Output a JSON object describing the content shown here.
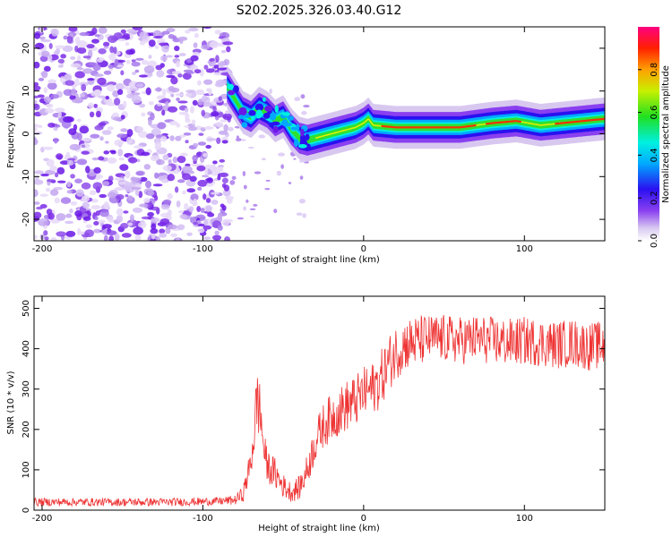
{
  "figure": {
    "title": "S202.2025.326.03.40.G12"
  },
  "chart_data": [
    {
      "type": "heatmap",
      "panel": "top",
      "xlabel": "Height of straight line (km)",
      "ylabel": "Frequency (Hz)",
      "xlim": [
        -205,
        150
      ],
      "ylim": [
        -25,
        25
      ],
      "xticks": [
        -200,
        -100,
        0,
        100
      ],
      "yticks": [
        -20,
        -10,
        0,
        10,
        20
      ],
      "colorbar": {
        "label": "Normalized spectral amplitude",
        "range": [
          0,
          1
        ],
        "ticks": [
          0.0,
          0.2,
          0.4,
          0.6,
          0.8
        ],
        "tick_labels": [
          "0.0",
          "0.2",
          "0.4",
          "0.6",
          "0.8"
        ]
      },
      "ridge": {
        "name": "dominant frequency ridge",
        "points": [
          {
            "x": -85,
            "y": 11
          },
          {
            "x": -80,
            "y": 8
          },
          {
            "x": -75,
            "y": 5
          },
          {
            "x": -70,
            "y": 4
          },
          {
            "x": -65,
            "y": 6
          },
          {
            "x": -60,
            "y": 5
          },
          {
            "x": -55,
            "y": 3
          },
          {
            "x": -50,
            "y": 4
          },
          {
            "x": -45,
            "y": 1
          },
          {
            "x": -40,
            "y": -1
          },
          {
            "x": -35,
            "y": -1.5
          },
          {
            "x": -30,
            "y": -1
          },
          {
            "x": -20,
            "y": 0
          },
          {
            "x": -10,
            "y": 1
          },
          {
            "x": -5,
            "y": 1.5
          },
          {
            "x": 0,
            "y": 2.5
          },
          {
            "x": 3,
            "y": 3.5
          },
          {
            "x": 6,
            "y": 2
          },
          {
            "x": 20,
            "y": 1.5
          },
          {
            "x": 60,
            "y": 1.5
          },
          {
            "x": 80,
            "y": 2.5
          },
          {
            "x": 95,
            "y": 3
          },
          {
            "x": 110,
            "y": 2
          },
          {
            "x": 150,
            "y": 3.5
          }
        ]
      },
      "noise_region": {
        "xmin": -205,
        "xmax": -85,
        "ymin": -25,
        "ymax": 25
      }
    },
    {
      "type": "line",
      "panel": "bottom",
      "xlabel": "Height of straight line (km)",
      "ylabel": "SNR (10 * v/v)",
      "xlim": [
        -205,
        150
      ],
      "ylim": [
        0,
        530
      ],
      "xticks": [
        -200,
        -100,
        0,
        100
      ],
      "yticks": [
        0,
        100,
        200,
        300,
        400,
        500
      ],
      "color": "#ee3333",
      "series": [
        {
          "name": "SNR envelope",
          "x": [
            -205,
            -120,
            -90,
            -80,
            -75,
            -70,
            -68,
            -66,
            -64,
            -62,
            -60,
            -55,
            -50,
            -45,
            -40,
            -35,
            -30,
            -25,
            -20,
            -15,
            -10,
            -5,
            0,
            5,
            10,
            15,
            20,
            25,
            30,
            35,
            40,
            45,
            50,
            60,
            70,
            80,
            90,
            100,
            110,
            120,
            130,
            140,
            150
          ],
          "mean": [
            20,
            20,
            22,
            25,
            40,
            120,
            200,
            280,
            230,
            150,
            110,
            90,
            60,
            45,
            55,
            100,
            170,
            210,
            230,
            245,
            260,
            270,
            290,
            300,
            320,
            360,
            390,
            410,
            415,
            420,
            425,
            425,
            425,
            420,
            425,
            420,
            415,
            420,
            415,
            410,
            415,
            405,
            410
          ],
          "spread": [
            10,
            10,
            10,
            12,
            20,
            40,
            70,
            90,
            70,
            50,
            40,
            40,
            30,
            25,
            30,
            40,
            50,
            55,
            60,
            60,
            65,
            65,
            65,
            65,
            70,
            70,
            70,
            65,
            65,
            65,
            60,
            60,
            60,
            60,
            60,
            60,
            60,
            60,
            60,
            60,
            60,
            60,
            60
          ]
        }
      ]
    }
  ]
}
